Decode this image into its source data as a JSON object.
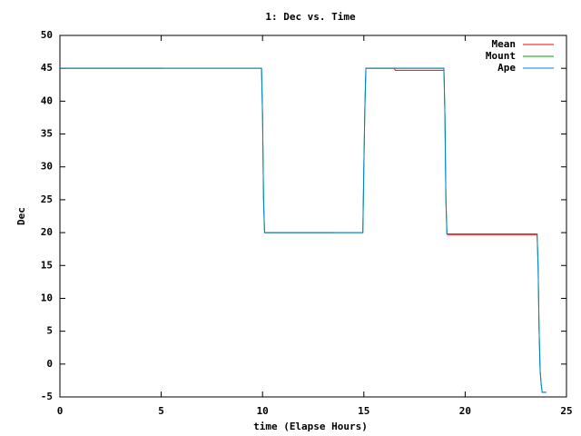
{
  "chart_data": {
    "type": "line",
    "title": "1: Dec vs. Time",
    "x_label": "time (Elapse Hours)",
    "y_label": "Dec",
    "x": [
      0,
      5.1,
      9.95,
      10.0,
      10.05,
      10.1,
      13.5,
      14.95,
      15.0,
      15.05,
      15.1,
      16.5,
      16.55,
      18.95,
      19.0,
      19.05,
      19.1,
      23.55,
      23.6,
      23.65,
      23.7,
      23.75,
      23.8,
      24.0
    ],
    "series": [
      {
        "name": "Mean",
        "color": "#ff0000",
        "values": [
          45,
          45,
          null,
          null,
          null,
          20,
          20,
          null,
          null,
          null,
          45,
          45,
          44.7,
          44.7,
          null,
          null,
          19.7,
          19.7,
          null,
          null,
          null,
          null,
          null,
          null
        ]
      },
      {
        "name": "Mount",
        "color": "#00a000",
        "values": [
          45,
          45,
          45,
          38,
          25,
          20,
          20,
          20,
          30,
          39,
          45,
          45,
          45,
          45,
          38,
          25,
          19.8,
          19.8,
          15,
          5,
          -1,
          -3,
          -4.3,
          -4.3
        ]
      },
      {
        "name": "Ape",
        "color": "#0080d0",
        "values": [
          45,
          45,
          45,
          38,
          25,
          20,
          20,
          20,
          30,
          39,
          45,
          45,
          45,
          45,
          38,
          25,
          19.8,
          19.8,
          15,
          5,
          -1,
          -3,
          -4.3,
          -4.3
        ]
      }
    ],
    "xlim": [
      0,
      25
    ],
    "xticks": [
      0,
      5,
      10,
      15,
      20,
      25
    ],
    "ylim": [
      -5,
      50
    ],
    "yticks": [
      -5,
      0,
      5,
      10,
      15,
      20,
      25,
      30,
      35,
      40,
      45,
      50
    ],
    "grid": false,
    "legend": "upper right"
  }
}
